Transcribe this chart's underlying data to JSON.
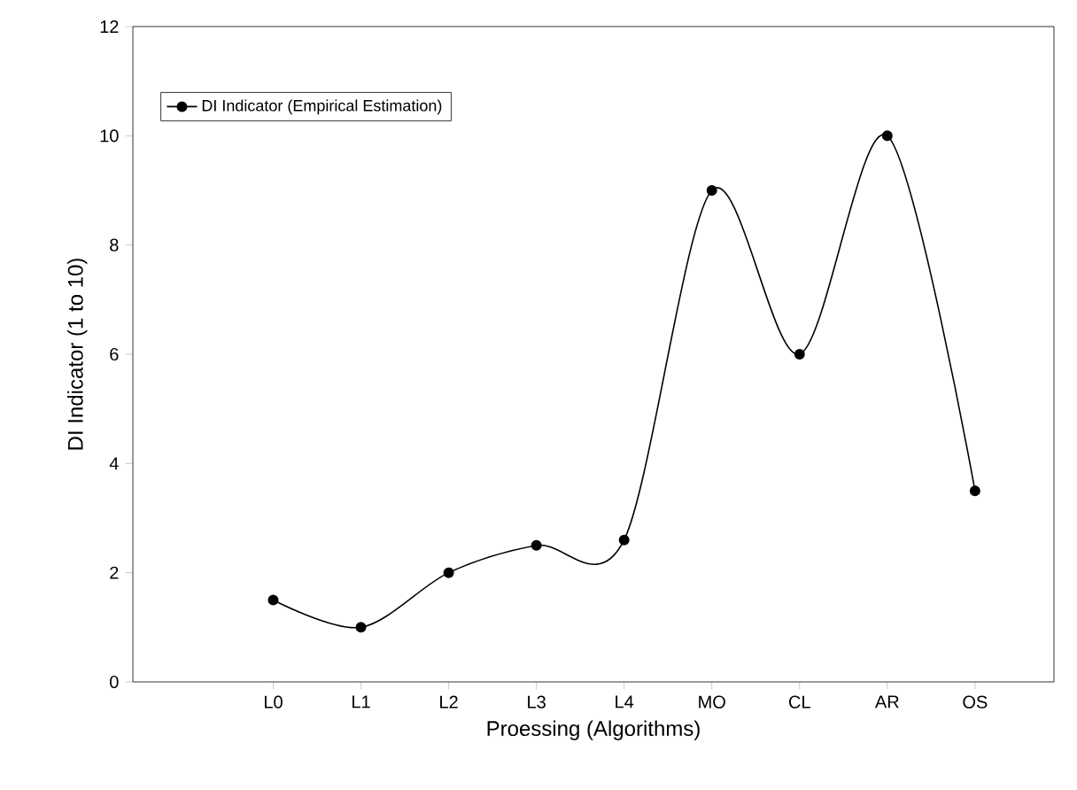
{
  "chart_data": {
    "type": "line",
    "xlabel": "Proessing (Algorithms)",
    "ylabel": "DI Indicator (1 to 10)",
    "categories": [
      "L0",
      "L1",
      "L2",
      "L3",
      "L4",
      "MO",
      "CL",
      "AR",
      "OS"
    ],
    "series": [
      {
        "name": "DI Indicator (Empirical Estimation)",
        "color": "#000000",
        "values": [
          1.5,
          1.0,
          2.0,
          2.5,
          2.6,
          9.0,
          6.0,
          10.0,
          3.5
        ]
      }
    ],
    "ylim": [
      0,
      12
    ],
    "yticks": [
      0,
      2,
      4,
      6,
      8,
      10,
      12
    ],
    "legend": "top left",
    "marker": "circle",
    "line_style": "solid"
  }
}
